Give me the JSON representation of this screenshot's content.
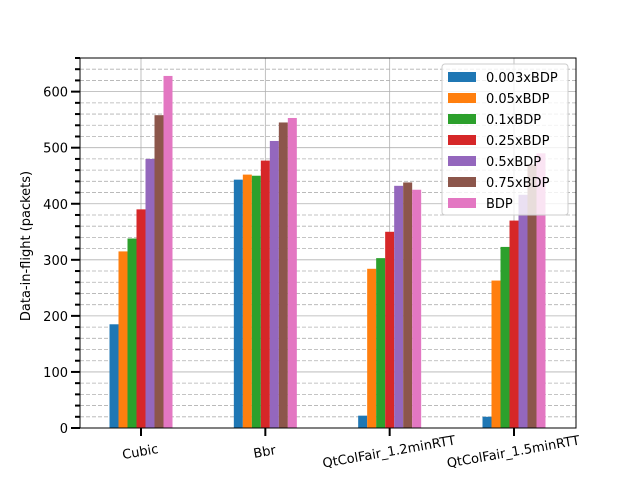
{
  "chart_data": {
    "type": "bar",
    "title": "",
    "xlabel": "",
    "ylabel": "Data-in-flight (packets)",
    "ylim": [
      0,
      660
    ],
    "yticks": [
      0,
      100,
      200,
      300,
      400,
      500,
      600
    ],
    "grid": "major and minor (dashed minor)",
    "legend_position": "top-right",
    "categories": [
      "Cubic",
      "Bbr",
      "QtColFair_1.2minRTT",
      "QtColFair_1.5minRTT"
    ],
    "series": [
      {
        "name": "0.003xBDP",
        "color": "#1f77b4",
        "values": [
          185,
          443,
          22,
          20
        ]
      },
      {
        "name": "0.05xBDP",
        "color": "#ff7f0e",
        "values": [
          315,
          452,
          284,
          263
        ]
      },
      {
        "name": "0.1xBDP",
        "color": "#2ca02c",
        "values": [
          338,
          450,
          303,
          323
        ]
      },
      {
        "name": "0.25xBDP",
        "color": "#d62728",
        "values": [
          390,
          477,
          350,
          370
        ]
      },
      {
        "name": "0.5xBDP",
        "color": "#9467bd",
        "values": [
          480,
          512,
          432,
          416
        ]
      },
      {
        "name": "0.75xBDP",
        "color": "#8c564b",
        "values": [
          558,
          545,
          438,
          470
        ]
      },
      {
        "name": "BDP",
        "color": "#e377c2",
        "values": [
          628,
          553,
          425,
          490
        ]
      }
    ]
  }
}
